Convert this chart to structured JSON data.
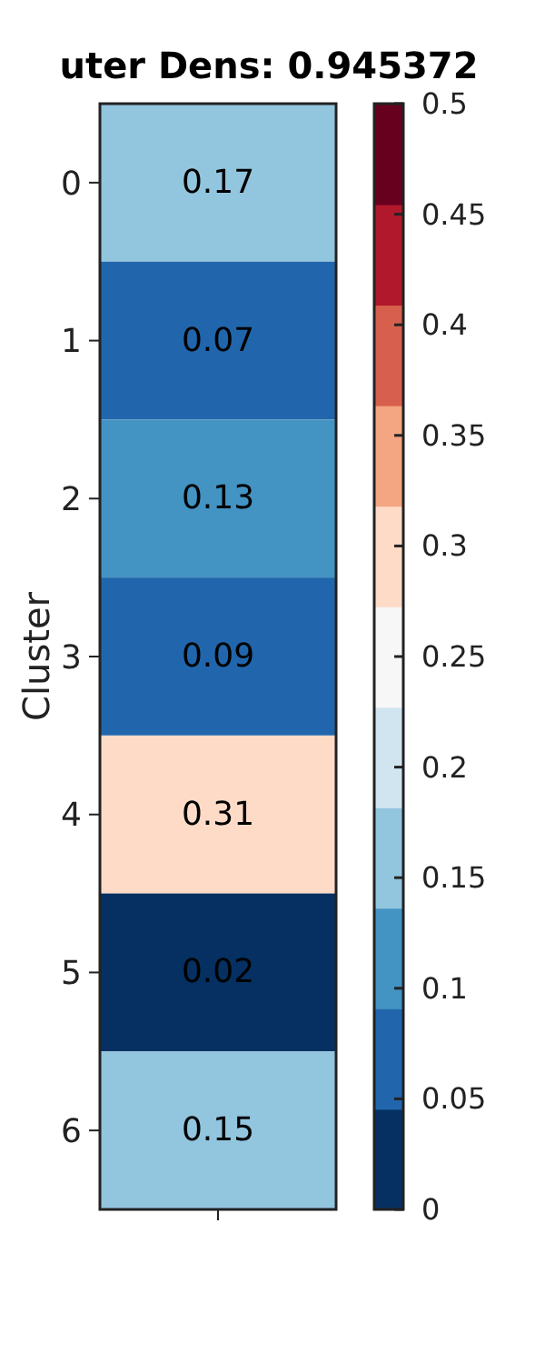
{
  "chart_data": {
    "type": "heatmap",
    "title": "uter Dens: 0.945372",
    "ylabel": "Cluster",
    "categories": [
      null
    ],
    "y_categories": [
      "0",
      "1",
      "2",
      "3",
      "4",
      "5",
      "6"
    ],
    "cells": [
      [
        0.17
      ],
      [
        0.07
      ],
      [
        0.13
      ],
      [
        0.09
      ],
      [
        0.31
      ],
      [
        0.02
      ],
      [
        0.15
      ]
    ],
    "data_labels": true,
    "clim": [
      0,
      0.5
    ],
    "cticks": [
      0,
      0.05,
      0.1,
      0.15,
      0.2,
      0.25,
      0.3,
      0.35,
      0.4,
      0.45,
      0.5
    ]
  }
}
